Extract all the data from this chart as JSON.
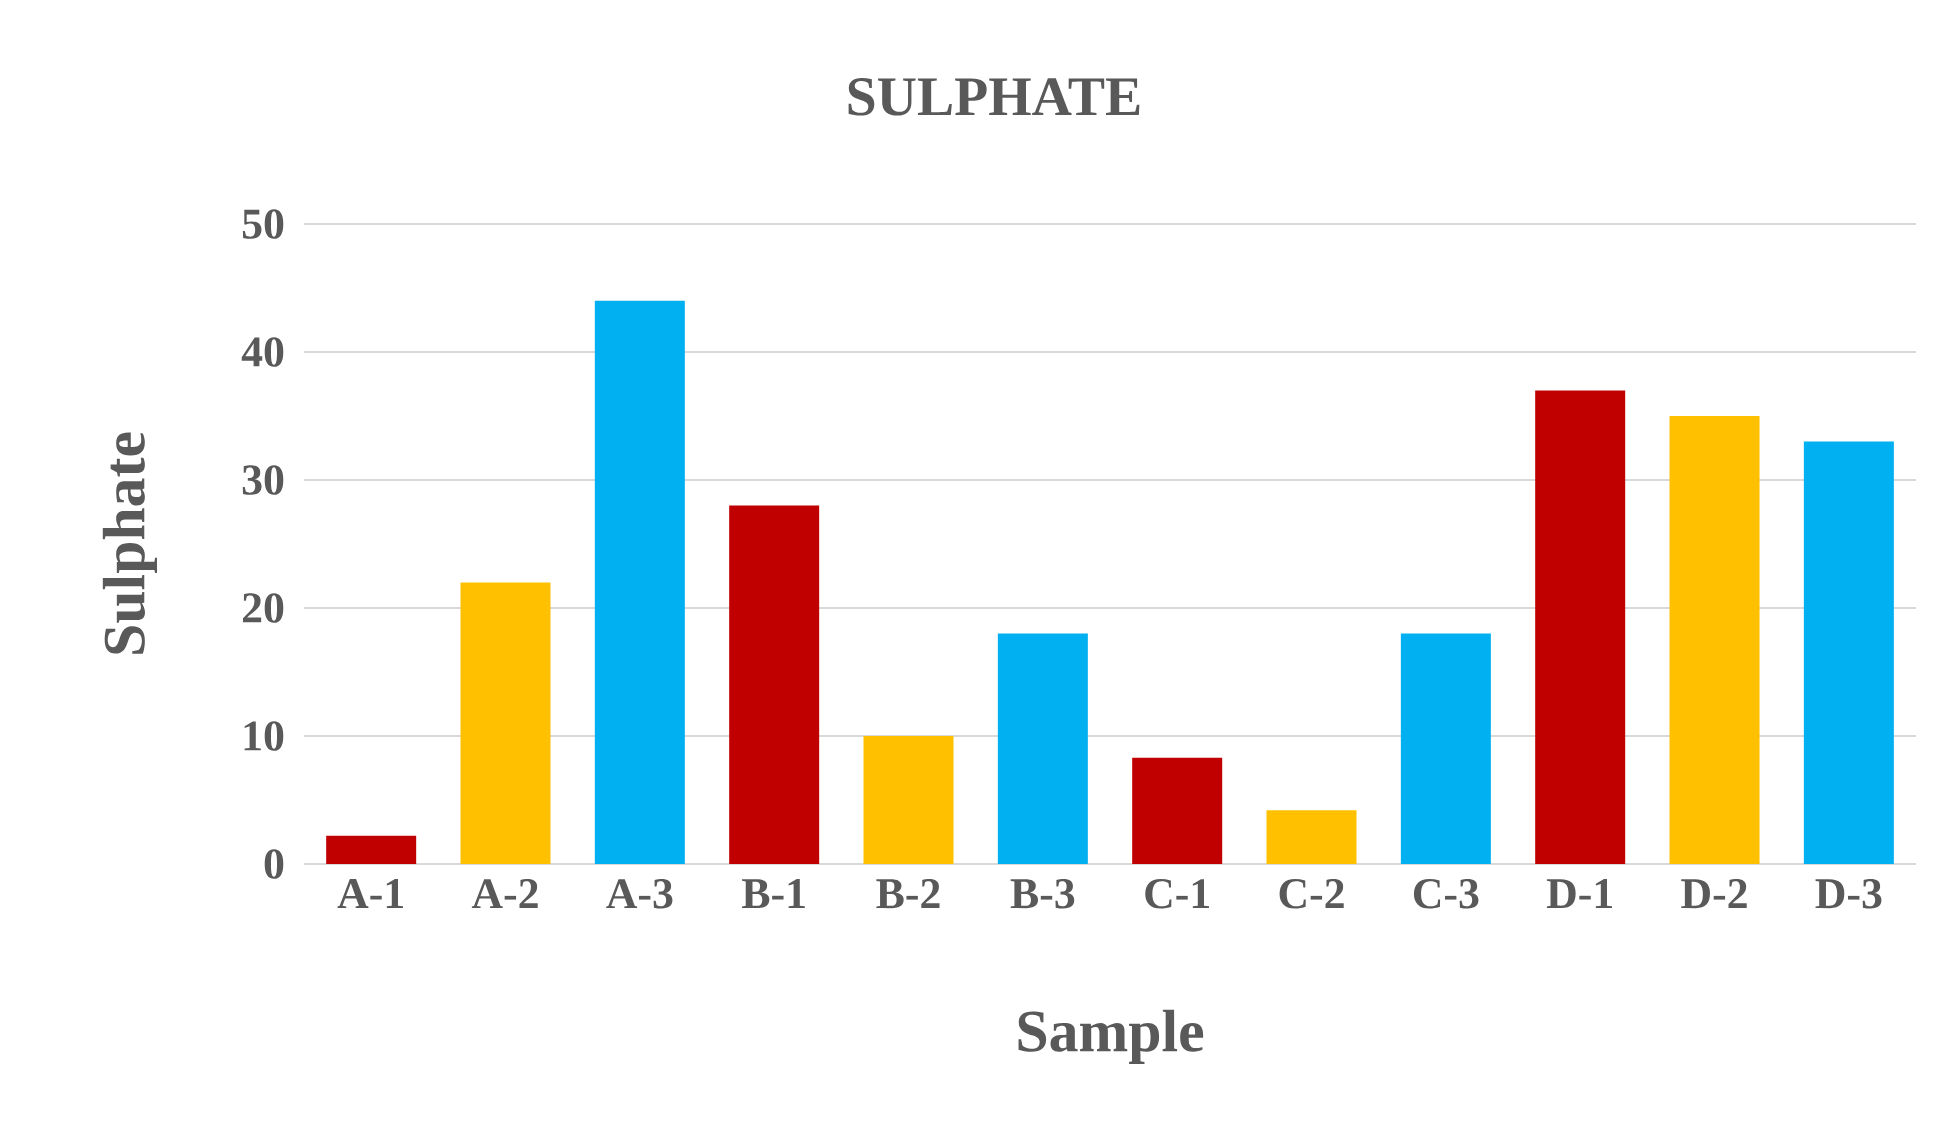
{
  "chart_data": {
    "type": "bar",
    "title": "SULPHATE",
    "xlabel": "Sample",
    "ylabel": "Sulphate",
    "categories": [
      "A-1",
      "A-2",
      "A-3",
      "B-1",
      "B-2",
      "B-3",
      "C-1",
      "C-2",
      "C-3",
      "D-1",
      "D-2",
      "D-3"
    ],
    "values": [
      2.2,
      22,
      44,
      28,
      10,
      18,
      8.3,
      4.2,
      18,
      37,
      35,
      33
    ],
    "colors": [
      "#c00000",
      "#ffc000",
      "#00b0f0",
      "#c00000",
      "#ffc000",
      "#00b0f0",
      "#c00000",
      "#ffc000",
      "#00b0f0",
      "#c00000",
      "#ffc000",
      "#00b0f0"
    ],
    "ylim": [
      0,
      50
    ],
    "yticks": [
      0,
      10,
      20,
      30,
      40,
      50
    ],
    "grid": "y"
  }
}
